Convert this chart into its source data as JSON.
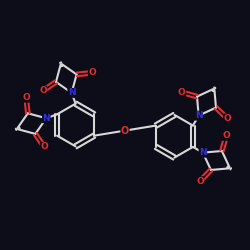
{
  "bg_color": "#0d0d1a",
  "bond_color": "#d8d8d8",
  "oxygen_color": "#e03030",
  "nitrogen_color": "#3030dd",
  "lw": 1.5,
  "fig_width": 2.5,
  "fig_height": 2.5,
  "dpi": 100,
  "xlim": [
    -5.5,
    5.5
  ],
  "ylim": [
    -4.0,
    4.5
  ]
}
